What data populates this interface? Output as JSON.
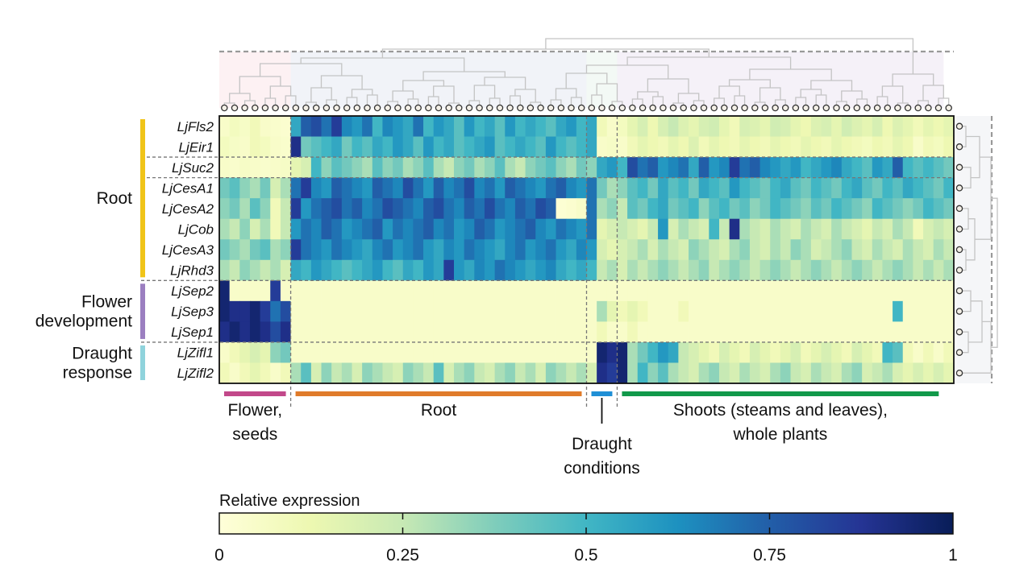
{
  "chart_data": {
    "type": "heatmap",
    "title": "",
    "legend": {
      "title": "Relative expression",
      "ticks": [
        0,
        0.25,
        0.5,
        0.75,
        1
      ],
      "tick_labels": [
        "0",
        "0.25",
        "0.5",
        "0.75",
        "1"
      ],
      "range": [
        0,
        1
      ],
      "placement": "bottom"
    },
    "colormap": [
      "#ffffd9",
      "#edf8b1",
      "#c7e9b4",
      "#7fcdbb",
      "#41b6c4",
      "#1d91c0",
      "#225ea8",
      "#253494",
      "#081d58"
    ],
    "genes": [
      "LjFls2",
      "LjEir1",
      "LjSuc2",
      "LjCesA1",
      "LjCesA2",
      "LjCob",
      "LjCesA3",
      "LjRhd3",
      "LjSep2",
      "LjSep3",
      "LjSep1",
      "LjZifl1",
      "LjZifl2"
    ],
    "gene_groups": [
      {
        "label_lines": [
          "Root"
        ],
        "genes": [
          "LjFls2",
          "LjEir1",
          "LjSuc2",
          "LjCesA1",
          "LjCesA2",
          "LjCob",
          "LjCesA3",
          "LjRhd3"
        ],
        "color": "#f0c419"
      },
      {
        "label_lines": [
          "Flower",
          "development"
        ],
        "genes": [
          "LjSep2",
          "LjSep3",
          "LjSep1"
        ],
        "color": "#9b7fc0"
      },
      {
        "label_lines": [
          "Draught",
          "response"
        ],
        "genes": [
          "LjZifl1",
          "LjZifl2"
        ],
        "color": "#8fd3dc"
      }
    ],
    "condition_groups": [
      {
        "label_lines": [
          "Flower,",
          "seeds"
        ],
        "n_samples": 7,
        "color": "#c2488a"
      },
      {
        "label_lines": [
          "Root"
        ],
        "n_samples": 29,
        "color": "#e07b2a"
      },
      {
        "label_lines": [
          "Draught",
          "conditions"
        ],
        "n_samples": 3,
        "color": "#1f8fd6"
      },
      {
        "label_lines": [
          "Shoots (steams and leaves),",
          "whole plants"
        ],
        "n_samples": 32,
        "color": "#11994a"
      }
    ],
    "values": [
      [
        0.05,
        0.08,
        0.06,
        0.1,
        0.05,
        0.04,
        0.03,
        0.55,
        0.75,
        0.8,
        0.7,
        0.85,
        0.65,
        0.6,
        0.7,
        0.5,
        0.65,
        0.6,
        0.55,
        0.7,
        0.5,
        0.6,
        0.55,
        0.45,
        0.6,
        0.5,
        0.55,
        0.45,
        0.6,
        0.5,
        0.55,
        0.5,
        0.45,
        0.55,
        0.6,
        0.5,
        0.55,
        0.1,
        0.05,
        0.08,
        0.15,
        0.2,
        0.12,
        0.2,
        0.25,
        0.18,
        0.15,
        0.2,
        0.22,
        0.15,
        0.1,
        0.2,
        0.18,
        0.15,
        0.22,
        0.2,
        0.15,
        0.12,
        0.18,
        0.2,
        0.15,
        0.22,
        0.18,
        0.15,
        0.2,
        0.12,
        0.18,
        0.15,
        0.1,
        0.15,
        0.12,
        0.15
      ],
      [
        0.08,
        0.06,
        0.05,
        0.1,
        0.08,
        0.05,
        0.04,
        0.9,
        0.4,
        0.45,
        0.5,
        0.55,
        0.4,
        0.5,
        0.45,
        0.55,
        0.5,
        0.6,
        0.55,
        0.45,
        0.6,
        0.5,
        0.55,
        0.45,
        0.5,
        0.55,
        0.6,
        0.45,
        0.5,
        0.55,
        0.5,
        0.45,
        0.6,
        0.5,
        0.45,
        0.5,
        0.55,
        0.05,
        0.06,
        0.05,
        0.1,
        0.15,
        0.12,
        0.1,
        0.15,
        0.12,
        0.18,
        0.1,
        0.15,
        0.12,
        0.1,
        0.15,
        0.12,
        0.1,
        0.15,
        0.12,
        0.1,
        0.15,
        0.12,
        0.1,
        0.15,
        0.12,
        0.1,
        0.08,
        0.12,
        0.1,
        0.15,
        0.12,
        0.05,
        0.1,
        0.08,
        0.12
      ],
      [
        0.05,
        0.04,
        0.06,
        0.05,
        0.04,
        0.05,
        0.06,
        0.15,
        0.2,
        0.5,
        0.35,
        0.45,
        0.4,
        0.35,
        0.3,
        0.45,
        0.35,
        0.4,
        0.3,
        0.35,
        0.45,
        0.3,
        0.25,
        0.35,
        0.4,
        0.3,
        0.35,
        0.45,
        0.3,
        0.25,
        0.35,
        0.4,
        0.45,
        0.35,
        0.3,
        0.4,
        0.35,
        0.55,
        0.6,
        0.5,
        0.8,
        0.7,
        0.75,
        0.6,
        0.65,
        0.7,
        0.55,
        0.75,
        0.6,
        0.65,
        0.85,
        0.7,
        0.75,
        0.65,
        0.6,
        0.55,
        0.6,
        0.5,
        0.55,
        0.6,
        0.65,
        0.55,
        0.5,
        0.45,
        0.6,
        0.55,
        0.75,
        0.5,
        0.45,
        0.5,
        0.45,
        0.4
      ],
      [
        0.4,
        0.45,
        0.35,
        0.3,
        0.4,
        0.2,
        0.3,
        0.7,
        0.85,
        0.65,
        0.6,
        0.75,
        0.7,
        0.65,
        0.6,
        0.75,
        0.7,
        0.65,
        0.8,
        0.7,
        0.6,
        0.75,
        0.65,
        0.7,
        0.8,
        0.65,
        0.7,
        0.6,
        0.75,
        0.7,
        0.65,
        0.6,
        0.7,
        0.75,
        0.65,
        0.6,
        0.7,
        0.4,
        0.3,
        0.35,
        0.45,
        0.5,
        0.4,
        0.55,
        0.45,
        0.5,
        0.4,
        0.55,
        0.5,
        0.45,
        0.6,
        0.5,
        0.45,
        0.4,
        0.5,
        0.55,
        0.45,
        0.4,
        0.5,
        0.45,
        0.4,
        0.5,
        0.55,
        0.45,
        0.4,
        0.5,
        0.45,
        0.55,
        0.5,
        0.45,
        0.4,
        0.5
      ],
      [
        0.35,
        0.4,
        0.3,
        0.45,
        0.35,
        0.1,
        0.25,
        0.85,
        0.6,
        0.7,
        0.75,
        0.8,
        0.7,
        0.75,
        0.65,
        0.7,
        0.8,
        0.75,
        0.7,
        0.65,
        0.75,
        0.8,
        0.7,
        0.65,
        0.75,
        0.7,
        0.8,
        0.7,
        0.65,
        0.75,
        0.7,
        0.8,
        0.75,
        0.02,
        0.03,
        0.05,
        0.7,
        0.3,
        0.35,
        0.25,
        0.45,
        0.4,
        0.5,
        0.55,
        0.4,
        0.45,
        0.5,
        0.35,
        0.45,
        0.5,
        0.4,
        0.45,
        0.35,
        0.4,
        0.5,
        0.45,
        0.4,
        0.35,
        0.45,
        0.4,
        0.5,
        0.45,
        0.4,
        0.35,
        0.5,
        0.45,
        0.4,
        0.35,
        0.4,
        0.5,
        0.45,
        0.4
      ],
      [
        0.3,
        0.25,
        0.35,
        0.2,
        0.3,
        0.1,
        0.25,
        0.6,
        0.7,
        0.65,
        0.75,
        0.7,
        0.6,
        0.65,
        0.7,
        0.75,
        0.6,
        0.7,
        0.65,
        0.7,
        0.75,
        0.65,
        0.7,
        0.6,
        0.65,
        0.75,
        0.7,
        0.6,
        0.65,
        0.7,
        0.75,
        0.65,
        0.6,
        0.7,
        0.65,
        0.6,
        0.7,
        0.15,
        0.2,
        0.25,
        0.2,
        0.15,
        0.25,
        0.6,
        0.2,
        0.3,
        0.25,
        0.2,
        0.5,
        0.25,
        0.9,
        0.3,
        0.25,
        0.2,
        0.3,
        0.25,
        0.2,
        0.3,
        0.25,
        0.2,
        0.3,
        0.25,
        0.2,
        0.15,
        0.25,
        0.2,
        0.3,
        0.25,
        0.1,
        0.2,
        0.25,
        0.2
      ],
      [
        0.4,
        0.35,
        0.3,
        0.4,
        0.45,
        0.3,
        0.35,
        0.85,
        0.7,
        0.65,
        0.6,
        0.7,
        0.65,
        0.6,
        0.55,
        0.65,
        0.7,
        0.6,
        0.65,
        0.7,
        0.6,
        0.55,
        0.65,
        0.6,
        0.7,
        0.65,
        0.6,
        0.55,
        0.65,
        0.7,
        0.6,
        0.65,
        0.7,
        0.6,
        0.55,
        0.65,
        0.6,
        0.2,
        0.15,
        0.2,
        0.25,
        0.3,
        0.2,
        0.3,
        0.25,
        0.2,
        0.35,
        0.3,
        0.25,
        0.2,
        0.3,
        0.35,
        0.25,
        0.2,
        0.3,
        0.25,
        0.35,
        0.3,
        0.2,
        0.25,
        0.3,
        0.35,
        0.25,
        0.2,
        0.3,
        0.25,
        0.2,
        0.3,
        0.25,
        0.2,
        0.3,
        0.25
      ],
      [
        0.3,
        0.25,
        0.35,
        0.3,
        0.25,
        0.3,
        0.2,
        0.55,
        0.5,
        0.6,
        0.55,
        0.5,
        0.45,
        0.5,
        0.55,
        0.6,
        0.5,
        0.45,
        0.55,
        0.5,
        0.6,
        0.55,
        0.85,
        0.6,
        0.55,
        0.65,
        0.6,
        0.7,
        0.65,
        0.6,
        0.55,
        0.6,
        0.65,
        0.55,
        0.5,
        0.55,
        0.5,
        0.25,
        0.3,
        0.2,
        0.3,
        0.25,
        0.3,
        0.35,
        0.3,
        0.25,
        0.3,
        0.35,
        0.25,
        0.3,
        0.35,
        0.3,
        0.25,
        0.3,
        0.35,
        0.3,
        0.25,
        0.3,
        0.35,
        0.3,
        0.25,
        0.3,
        0.35,
        0.3,
        0.25,
        0.3,
        0.35,
        0.3,
        0.25,
        0.3,
        0.25,
        0.3
      ],
      [
        0.95,
        0.05,
        0.05,
        0.05,
        0.05,
        0.85,
        0.05,
        0.05,
        0.05,
        0.05,
        0.05,
        0.05,
        0.05,
        0.05,
        0.05,
        0.05,
        0.05,
        0.05,
        0.05,
        0.05,
        0.05,
        0.05,
        0.05,
        0.05,
        0.05,
        0.05,
        0.05,
        0.05,
        0.05,
        0.05,
        0.05,
        0.05,
        0.05,
        0.05,
        0.05,
        0.05,
        0.05,
        0.05,
        0.05,
        0.05,
        0.05,
        0.05,
        0.05,
        0.05,
        0.05,
        0.05,
        0.05,
        0.05,
        0.05,
        0.05,
        0.05,
        0.05,
        0.05,
        0.05,
        0.05,
        0.05,
        0.05,
        0.05,
        0.05,
        0.05,
        0.05,
        0.05,
        0.05,
        0.05,
        0.05,
        0.05,
        0.05,
        0.05,
        0.05,
        0.05,
        0.05,
        0.05
      ],
      [
        0.95,
        0.9,
        0.9,
        0.95,
        0.85,
        0.7,
        0.8,
        0.05,
        0.05,
        0.05,
        0.05,
        0.05,
        0.05,
        0.05,
        0.05,
        0.05,
        0.05,
        0.05,
        0.05,
        0.05,
        0.05,
        0.05,
        0.05,
        0.05,
        0.05,
        0.05,
        0.05,
        0.05,
        0.05,
        0.05,
        0.05,
        0.05,
        0.05,
        0.05,
        0.05,
        0.05,
        0.05,
        0.3,
        0.15,
        0.1,
        0.15,
        0.1,
        0.05,
        0.05,
        0.05,
        0.1,
        0.05,
        0.05,
        0.05,
        0.05,
        0.05,
        0.05,
        0.05,
        0.05,
        0.05,
        0.05,
        0.05,
        0.05,
        0.05,
        0.05,
        0.05,
        0.05,
        0.05,
        0.05,
        0.05,
        0.05,
        0.5,
        0.05,
        0.05,
        0.05,
        0.05,
        0.05
      ],
      [
        0.9,
        0.95,
        0.9,
        0.95,
        0.9,
        0.8,
        0.9,
        0.05,
        0.05,
        0.05,
        0.05,
        0.05,
        0.05,
        0.05,
        0.05,
        0.05,
        0.05,
        0.05,
        0.05,
        0.05,
        0.05,
        0.05,
        0.05,
        0.05,
        0.05,
        0.05,
        0.05,
        0.05,
        0.05,
        0.05,
        0.05,
        0.05,
        0.05,
        0.05,
        0.05,
        0.05,
        0.05,
        0.1,
        0.05,
        0.05,
        0.1,
        0.05,
        0.05,
        0.05,
        0.05,
        0.05,
        0.05,
        0.05,
        0.05,
        0.05,
        0.05,
        0.05,
        0.05,
        0.05,
        0.05,
        0.05,
        0.05,
        0.05,
        0.05,
        0.05,
        0.05,
        0.05,
        0.05,
        0.05,
        0.05,
        0.05,
        0.05,
        0.05,
        0.05,
        0.05,
        0.05,
        0.05
      ],
      [
        0.05,
        0.1,
        0.15,
        0.2,
        0.15,
        0.35,
        0.4,
        0.05,
        0.05,
        0.05,
        0.05,
        0.05,
        0.05,
        0.05,
        0.05,
        0.05,
        0.05,
        0.05,
        0.05,
        0.05,
        0.05,
        0.05,
        0.05,
        0.05,
        0.05,
        0.05,
        0.05,
        0.05,
        0.05,
        0.05,
        0.05,
        0.05,
        0.05,
        0.05,
        0.05,
        0.05,
        0.05,
        0.95,
        0.9,
        0.95,
        0.3,
        0.4,
        0.5,
        0.6,
        0.55,
        0.25,
        0.2,
        0.15,
        0.1,
        0.2,
        0.15,
        0.1,
        0.2,
        0.15,
        0.1,
        0.15,
        0.2,
        0.1,
        0.15,
        0.2,
        0.15,
        0.1,
        0.2,
        0.15,
        0.1,
        0.5,
        0.45,
        0.1,
        0.05,
        0.1,
        0.05,
        0.1
      ],
      [
        0.1,
        0.05,
        0.1,
        0.15,
        0.1,
        0.05,
        0.1,
        0.3,
        0.45,
        0.2,
        0.35,
        0.25,
        0.3,
        0.2,
        0.35,
        0.3,
        0.25,
        0.2,
        0.35,
        0.3,
        0.25,
        0.45,
        0.2,
        0.3,
        0.35,
        0.25,
        0.2,
        0.3,
        0.35,
        0.25,
        0.3,
        0.2,
        0.35,
        0.3,
        0.25,
        0.3,
        0.2,
        0.9,
        0.85,
        0.95,
        0.3,
        0.5,
        0.35,
        0.45,
        0.3,
        0.25,
        0.2,
        0.3,
        0.35,
        0.25,
        0.2,
        0.3,
        0.25,
        0.2,
        0.3,
        0.35,
        0.25,
        0.2,
        0.3,
        0.25,
        0.2,
        0.3,
        0.35,
        0.2,
        0.25,
        0.3,
        0.2,
        0.15,
        0.2,
        0.15,
        0.2,
        0.15
      ]
    ]
  }
}
